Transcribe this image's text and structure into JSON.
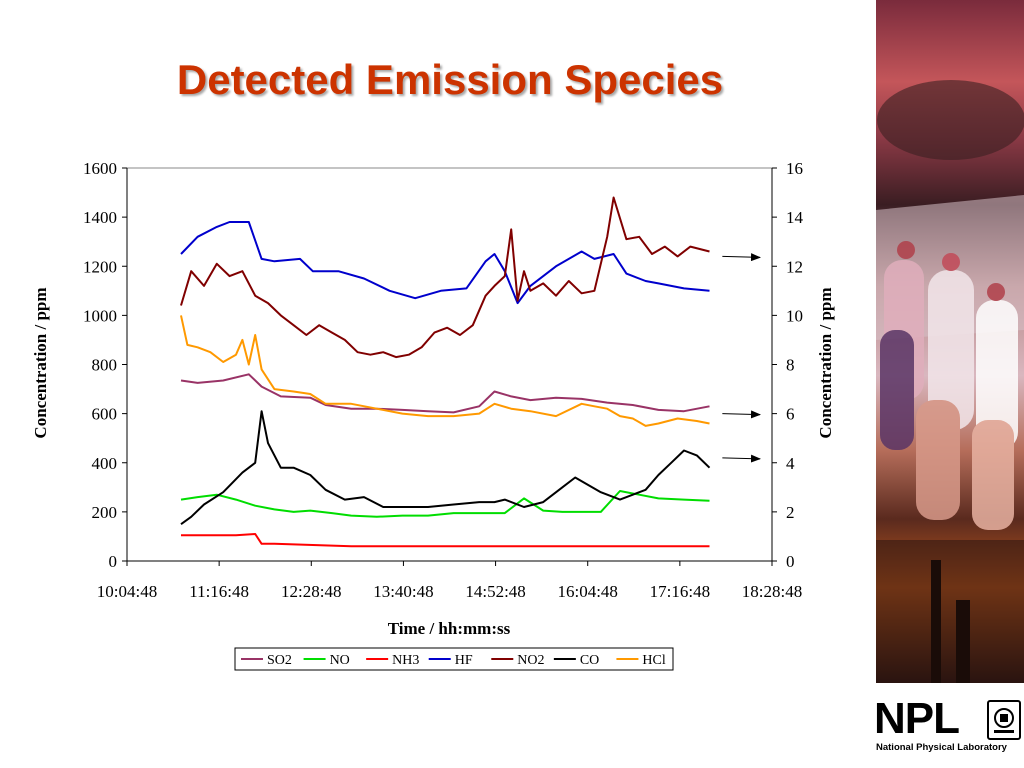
{
  "slide": {
    "title": "Detected Emission Species"
  },
  "logo": {
    "text": "NPL",
    "subtitle": "National Physical Laboratory"
  },
  "photo": {
    "icon": "gas-cylinders-industrial-photo"
  },
  "chart_data": {
    "type": "line",
    "title": "",
    "xlabel": "Time / hh:mm:ss",
    "ylabel": "Concentration / ppm",
    "y2label": "Concentration / ppm",
    "xlim": [
      "10:04:48",
      "18:28:48"
    ],
    "ylim": [
      0,
      1600
    ],
    "y2lim": [
      0,
      16
    ],
    "x_ticks": [
      "10:04:48",
      "11:16:48",
      "12:28:48",
      "13:40:48",
      "14:52:48",
      "16:04:48",
      "17:16:48",
      "18:28:48"
    ],
    "y_ticks": [
      "0",
      "200",
      "400",
      "600",
      "800",
      "1000",
      "1200",
      "1400",
      "1600"
    ],
    "y2_ticks": [
      "0",
      "2",
      "4",
      "6",
      "8",
      "10",
      "12",
      "14",
      "16"
    ],
    "legend_position": "bottom",
    "grid": false,
    "series": [
      {
        "name": "SO2",
        "color": "#993366",
        "axis": "left",
        "x": [
          "10:47:00",
          "11:00:00",
          "11:20:00",
          "11:40:00",
          "11:50:00",
          "12:05:00",
          "12:28:00",
          "12:40:00",
          "13:00:00",
          "13:20:00",
          "13:40:00",
          "14:00:00",
          "14:20:00",
          "14:40:00",
          "14:52:00",
          "15:05:00",
          "15:20:00",
          "15:40:00",
          "16:00:00",
          "16:20:00",
          "16:40:00",
          "17:00:00",
          "17:20:00",
          "17:40:00"
        ],
        "values": [
          735,
          725,
          735,
          760,
          710,
          670,
          665,
          635,
          620,
          620,
          615,
          610,
          605,
          630,
          690,
          670,
          655,
          665,
          660,
          645,
          635,
          615,
          610,
          630
        ]
      },
      {
        "name": "NO",
        "color": "#00dd00",
        "axis": "left",
        "x": [
          "10:47:00",
          "11:00:00",
          "11:15:00",
          "11:30:00",
          "11:45:00",
          "12:00:00",
          "12:15:00",
          "12:28:00",
          "12:45:00",
          "13:00:00",
          "13:20:00",
          "13:40:00",
          "14:00:00",
          "14:20:00",
          "14:40:00",
          "15:00:00",
          "15:15:00",
          "15:30:00",
          "15:45:00",
          "16:00:00",
          "16:15:00",
          "16:30:00",
          "16:45:00",
          "17:00:00",
          "17:20:00",
          "17:40:00"
        ],
        "values": [
          250,
          260,
          270,
          250,
          225,
          210,
          200,
          205,
          195,
          185,
          180,
          185,
          185,
          195,
          195,
          195,
          255,
          205,
          200,
          200,
          200,
          285,
          270,
          255,
          250,
          245
        ]
      },
      {
        "name": "NH3",
        "color": "#ff0000",
        "axis": "left",
        "x": [
          "10:47:00",
          "11:30:00",
          "11:45:00",
          "11:50:00",
          "12:00:00",
          "12:30:00",
          "13:00:00",
          "14:00:00",
          "15:00:00",
          "16:00:00",
          "17:00:00",
          "17:40:00"
        ],
        "values": [
          105,
          105,
          110,
          70,
          70,
          65,
          60,
          60,
          60,
          60,
          60,
          60
        ]
      },
      {
        "name": "HF",
        "color": "#0000cc",
        "axis": "right",
        "x": [
          "10:47:00",
          "11:00:00",
          "11:15:00",
          "11:25:00",
          "11:40:00",
          "11:50:00",
          "12:00:00",
          "12:20:00",
          "12:30:00",
          "12:50:00",
          "13:10:00",
          "13:30:00",
          "13:50:00",
          "14:10:00",
          "14:30:00",
          "14:45:00",
          "14:52:00",
          "15:00:00",
          "15:10:00",
          "15:20:00",
          "15:40:00",
          "16:00:00",
          "16:10:00",
          "16:25:00",
          "16:35:00",
          "16:50:00",
          "17:00:00",
          "17:20:00",
          "17:40:00"
        ],
        "values": [
          12.5,
          13.2,
          13.6,
          13.8,
          13.8,
          12.3,
          12.2,
          12.3,
          11.8,
          11.8,
          11.5,
          11.0,
          10.7,
          11.0,
          11.1,
          12.2,
          12.5,
          11.8,
          10.5,
          11.2,
          12.0,
          12.6,
          12.3,
          12.5,
          11.7,
          11.4,
          11.3,
          11.1,
          11.0
        ]
      },
      {
        "name": "NO2",
        "color": "#800000",
        "axis": "right",
        "x": [
          "10:47:00",
          "10:55:00",
          "11:05:00",
          "11:15:00",
          "11:25:00",
          "11:35:00",
          "11:45:00",
          "11:55:00",
          "12:05:00",
          "12:15:00",
          "12:25:00",
          "12:35:00",
          "12:45:00",
          "12:55:00",
          "13:05:00",
          "13:15:00",
          "13:25:00",
          "13:35:00",
          "13:45:00",
          "13:55:00",
          "14:05:00",
          "14:15:00",
          "14:25:00",
          "14:35:00",
          "14:45:00",
          "14:52:00",
          "15:00:00",
          "15:05:00",
          "15:10:00",
          "15:15:00",
          "15:20:00",
          "15:30:00",
          "15:40:00",
          "15:50:00",
          "16:00:00",
          "16:10:00",
          "16:20:00",
          "16:25:00",
          "16:35:00",
          "16:45:00",
          "16:55:00",
          "17:05:00",
          "17:15:00",
          "17:25:00",
          "17:40:00"
        ],
        "values": [
          10.4,
          11.8,
          11.2,
          12.1,
          11.6,
          11.8,
          10.8,
          10.5,
          10.0,
          9.6,
          9.2,
          9.6,
          9.3,
          9.0,
          8.5,
          8.4,
          8.5,
          8.3,
          8.4,
          8.7,
          9.3,
          9.5,
          9.2,
          9.6,
          10.8,
          11.2,
          11.6,
          13.5,
          10.6,
          11.8,
          11.0,
          11.3,
          10.8,
          11.4,
          10.9,
          11.0,
          13.2,
          14.8,
          13.1,
          13.2,
          12.5,
          12.8,
          12.4,
          12.8,
          12.6
        ]
      },
      {
        "name": "CO",
        "color": "#000000",
        "axis": "right",
        "x": [
          "10:47:00",
          "10:55:00",
          "11:05:00",
          "11:20:00",
          "11:35:00",
          "11:45:00",
          "11:50:00",
          "11:55:00",
          "12:05:00",
          "12:15:00",
          "12:28:00",
          "12:40:00",
          "12:55:00",
          "13:10:00",
          "13:25:00",
          "13:40:00",
          "14:00:00",
          "14:20:00",
          "14:40:00",
          "14:52:00",
          "15:00:00",
          "15:15:00",
          "15:30:00",
          "15:45:00",
          "15:55:00",
          "16:05:00",
          "16:15:00",
          "16:30:00",
          "16:40:00",
          "16:50:00",
          "17:00:00",
          "17:10:00",
          "17:20:00",
          "17:30:00",
          "17:40:00"
        ],
        "values": [
          1.5,
          1.8,
          2.3,
          2.8,
          3.6,
          4.0,
          6.1,
          4.8,
          3.8,
          3.8,
          3.5,
          2.9,
          2.5,
          2.6,
          2.2,
          2.2,
          2.2,
          2.3,
          2.4,
          2.4,
          2.5,
          2.2,
          2.4,
          3.0,
          3.4,
          3.1,
          2.8,
          2.5,
          2.7,
          2.9,
          3.5,
          4.0,
          4.5,
          4.3,
          3.8
        ]
      },
      {
        "name": "HCl",
        "color": "#ff9900",
        "axis": "left",
        "x": [
          "10:47:00",
          "10:52:00",
          "11:00:00",
          "11:10:00",
          "11:20:00",
          "11:30:00",
          "11:35:00",
          "11:40:00",
          "11:45:00",
          "11:50:00",
          "12:00:00",
          "12:15:00",
          "12:28:00",
          "12:40:00",
          "13:00:00",
          "13:20:00",
          "13:40:00",
          "14:00:00",
          "14:20:00",
          "14:40:00",
          "14:52:00",
          "15:05:00",
          "15:20:00",
          "15:40:00",
          "16:00:00",
          "16:10:00",
          "16:20:00",
          "16:30:00",
          "16:40:00",
          "16:50:00",
          "17:00:00",
          "17:15:00",
          "17:30:00",
          "17:40:00"
        ],
        "values": [
          1000,
          880,
          870,
          850,
          810,
          840,
          900,
          800,
          920,
          780,
          700,
          690,
          680,
          640,
          640,
          620,
          600,
          590,
          590,
          600,
          640,
          620,
          610,
          590,
          640,
          630,
          620,
          590,
          580,
          550,
          560,
          580,
          570,
          560
        ]
      }
    ],
    "annotations": [
      "arrow to right axis (HF)",
      "arrow to right axis (NO2)",
      "arrow to right axis (CO)"
    ]
  }
}
